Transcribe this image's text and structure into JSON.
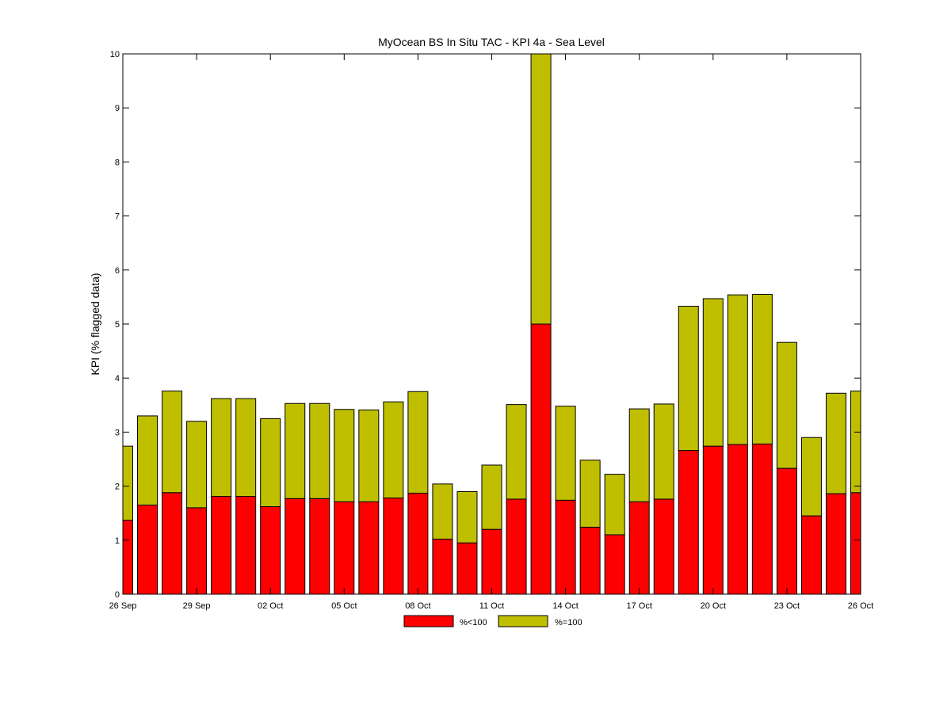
{
  "chart_data": {
    "type": "bar",
    "stacked": true,
    "title": "MyOcean  BS In Situ TAC - KPI 4a - Sea Level",
    "xlabel": "",
    "ylabel": "KPI (% flagged data)",
    "ylim": [
      0,
      10
    ],
    "yticks": [
      0,
      1,
      2,
      3,
      4,
      5,
      6,
      7,
      8,
      9,
      10
    ],
    "xlim": [
      "2010-09-26",
      "2010-10-26"
    ],
    "xticks": [
      {
        "date": "2010-09-26",
        "label": "26 Sep"
      },
      {
        "date": "2010-09-29",
        "label": "29 Sep"
      },
      {
        "date": "2010-10-02",
        "label": "02 Oct"
      },
      {
        "date": "2010-10-05",
        "label": "05 Oct"
      },
      {
        "date": "2010-10-08",
        "label": "08 Oct"
      },
      {
        "date": "2010-10-11",
        "label": "11 Oct"
      },
      {
        "date": "2010-10-14",
        "label": "14 Oct"
      },
      {
        "date": "2010-10-17",
        "label": "17 Oct"
      },
      {
        "date": "2010-10-20",
        "label": "20 Oct"
      },
      {
        "date": "2010-10-23",
        "label": "23 Oct"
      },
      {
        "date": "2010-10-26",
        "label": "26 Oct"
      }
    ],
    "x": [
      "2010-09-26",
      "2010-09-27",
      "2010-09-28",
      "2010-09-29",
      "2010-09-30",
      "2010-10-01",
      "2010-10-02",
      "2010-10-03",
      "2010-10-04",
      "2010-10-05",
      "2010-10-06",
      "2010-10-07",
      "2010-10-08",
      "2010-10-09",
      "2010-10-10",
      "2010-10-11",
      "2010-10-12",
      "2010-10-13",
      "2010-10-14",
      "2010-10-15",
      "2010-10-16",
      "2010-10-17",
      "2010-10-18",
      "2010-10-19",
      "2010-10-20",
      "2010-10-21",
      "2010-10-22",
      "2010-10-23",
      "2010-10-24",
      "2010-10-25",
      "2010-10-26"
    ],
    "series": [
      {
        "name": "%<100",
        "color": "#ff0000",
        "values": [
          1.37,
          1.65,
          1.88,
          1.6,
          1.81,
          1.81,
          1.62,
          1.77,
          1.77,
          1.71,
          1.71,
          1.78,
          1.87,
          1.02,
          0.95,
          1.2,
          1.76,
          5.0,
          1.74,
          1.24,
          1.1,
          1.71,
          1.76,
          2.66,
          2.74,
          2.77,
          2.78,
          2.33,
          1.45,
          1.86,
          1.88
        ]
      },
      {
        "name": "%=100",
        "color": "#bfbf00",
        "values": [
          1.37,
          1.65,
          1.88,
          1.6,
          1.81,
          1.81,
          1.63,
          1.76,
          1.76,
          1.71,
          1.7,
          1.78,
          1.88,
          1.02,
          0.95,
          1.19,
          1.75,
          5.0,
          1.74,
          1.24,
          1.12,
          1.72,
          1.76,
          2.67,
          2.73,
          2.77,
          2.77,
          2.33,
          1.45,
          1.86,
          1.88
        ]
      }
    ],
    "legend": {
      "position": "bottom-center",
      "entries": [
        "%<100",
        "%=100"
      ]
    },
    "grid": false
  }
}
